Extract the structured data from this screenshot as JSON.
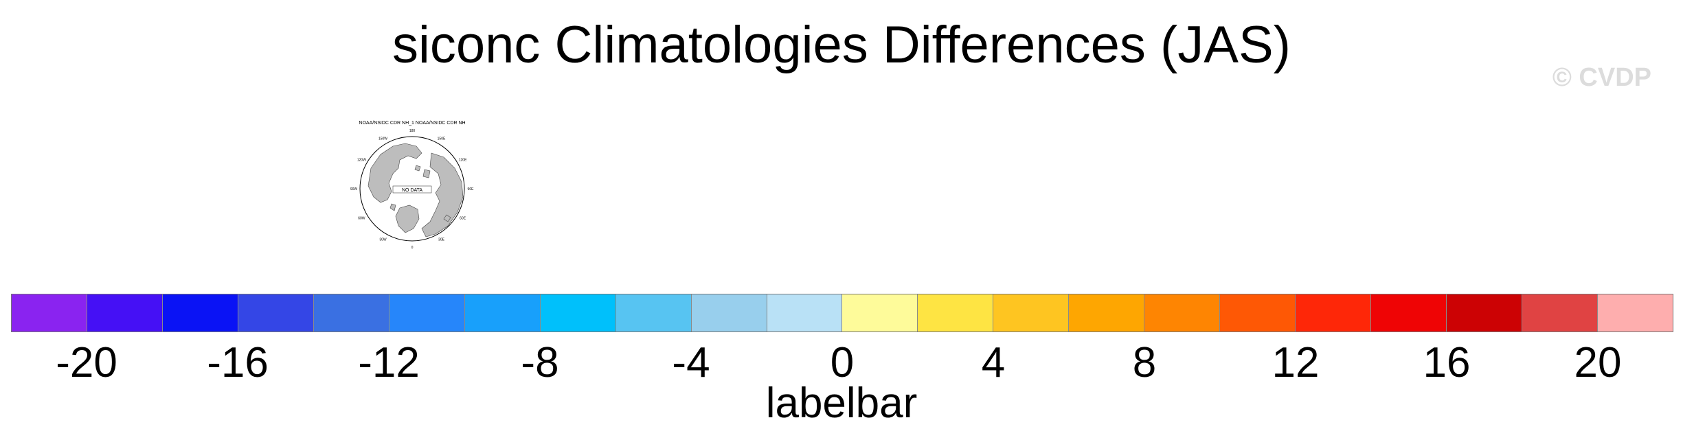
{
  "chart_data": {
    "type": "heatmap",
    "title": "siconc Climatologies Differences (JAS)",
    "watermark": "© CVDP",
    "panel": {
      "header": "NOAA/NSIDC CDR NH_1 NOAA/NSIDC CDR NH",
      "projection": "north-polar-stereographic",
      "inner_label": "NO DATA",
      "lon_labels": [
        "180",
        "150E",
        "120E",
        "90E",
        "60E",
        "30E",
        "0",
        "30W",
        "60W",
        "90W",
        "120W",
        "150W"
      ]
    },
    "colorbar": {
      "label": "labelbar",
      "levels": [
        -22,
        -20,
        -18,
        -16,
        -14,
        -12,
        -10,
        -8,
        -6,
        -4,
        -2,
        0,
        2,
        4,
        6,
        8,
        10,
        12,
        14,
        16,
        18,
        20,
        22
      ],
      "tick_labels": [
        "-20",
        "-16",
        "-12",
        "-8",
        "-4",
        "0",
        "4",
        "8",
        "12",
        "16",
        "20"
      ],
      "tick_values": [
        -20,
        -16,
        -12,
        -8,
        -4,
        0,
        4,
        8,
        12,
        16,
        20
      ],
      "colors": [
        "#8a23f0",
        "#4510f5",
        "#0a13f5",
        "#3446e6",
        "#3a70e2",
        "#2686fa",
        "#18a0fb",
        "#00c0fb",
        "#57c4f2",
        "#98cfed",
        "#b9e1f6",
        "#fefb9a",
        "#fee443",
        "#fec521",
        "#fea601",
        "#fe8502",
        "#fe5805",
        "#fe2708",
        "#ef0405",
        "#cc0204",
        "#e04343",
        "#feaeae"
      ]
    }
  }
}
